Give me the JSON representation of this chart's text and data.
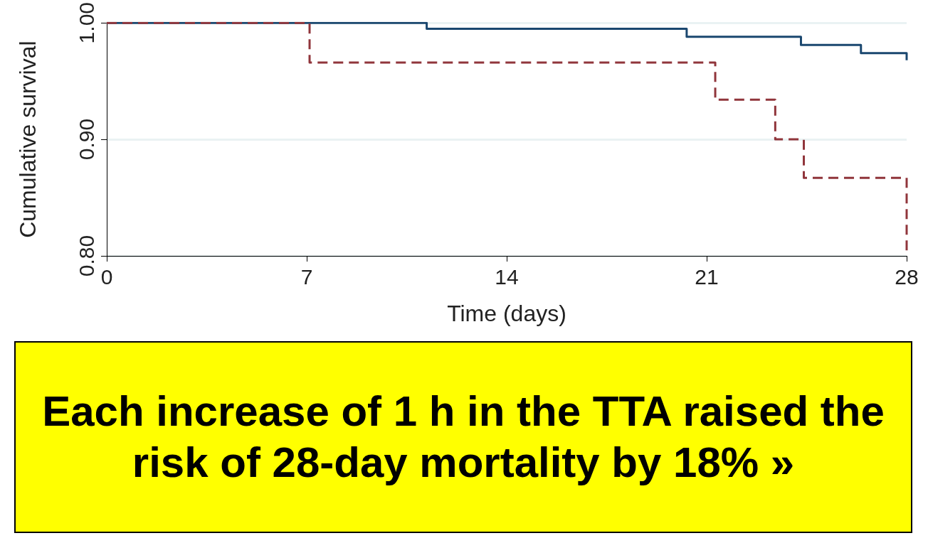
{
  "chart_data": {
    "type": "step",
    "xlabel": "Time (days)",
    "ylabel": "Cumulative survival",
    "xlim": [
      0,
      28
    ],
    "xticks": [
      0,
      7,
      14,
      21,
      28
    ],
    "ylim": [
      0.8,
      1.0
    ],
    "yticks": [
      {
        "value": 0.8,
        "label": "0.80"
      },
      {
        "value": 0.9,
        "label": "0.90"
      },
      {
        "value": 1.0,
        "label": "1.00"
      }
    ],
    "grid": "y",
    "marker": "none",
    "series": [
      {
        "color": "#1a476f",
        "line_style": "solid",
        "x": [
          0,
          11.2,
          20.3,
          24.3,
          26.4,
          28
        ],
        "values": [
          1.0,
          0.995,
          0.988,
          0.981,
          0.974,
          0.968
        ]
      },
      {
        "color": "#90353b",
        "line_style": "dashed",
        "x": [
          0,
          7.1,
          21.3,
          23.4,
          24.4,
          28
        ],
        "values": [
          1.0,
          0.966,
          0.934,
          0.9,
          0.867,
          0.8
        ]
      }
    ],
    "annotations": [
      "Each increase of 1 h in the TTA raised the risk of 28-day mortality by 18% »"
    ]
  }
}
